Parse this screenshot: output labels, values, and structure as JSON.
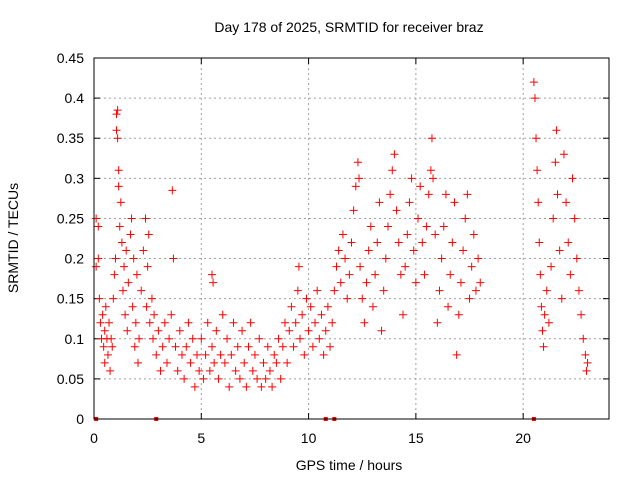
{
  "chart_data": {
    "type": "scatter",
    "title": "Day 178 of 2025, SRMTID for receiver braz",
    "xlabel": "GPS time / hours",
    "ylabel": "SRMTID / TECUs",
    "xlim": [
      0,
      24
    ],
    "ylim": [
      0,
      0.45
    ],
    "x_ticks": [
      0,
      5,
      10,
      15,
      20
    ],
    "x_tick_labels": [
      "0",
      "5",
      "10",
      "15",
      "20"
    ],
    "y_ticks": [
      0,
      0.05,
      0.1,
      0.15,
      0.2,
      0.25,
      0.3,
      0.35,
      0.4,
      0.45
    ],
    "y_tick_labels": [
      "0",
      "0.05",
      "0.1",
      "0.15",
      "0.2",
      "0.25",
      "0.3",
      "0.35",
      "0.4",
      "0.45"
    ],
    "grid": true,
    "marker": "+",
    "series": [
      {
        "name": "SRMTID",
        "color": "#ff0000",
        "points": [
          [
            0.1,
            0.25
          ],
          [
            0.1,
            0.19
          ],
          [
            0.2,
            0.24
          ],
          [
            0.2,
            0.2
          ],
          [
            0.25,
            0.15
          ],
          [
            0.3,
            0.12
          ],
          [
            0.35,
            0.1
          ],
          [
            0.4,
            0.13
          ],
          [
            0.45,
            0.09
          ],
          [
            0.5,
            0.11
          ],
          [
            0.5,
            0.07
          ],
          [
            0.55,
            0.14
          ],
          [
            0.6,
            0.1
          ],
          [
            0.65,
            0.08
          ],
          [
            0.7,
            0.12
          ],
          [
            0.75,
            0.06
          ],
          [
            0.8,
            0.1
          ],
          [
            0.85,
            0.09
          ],
          [
            0.9,
            0.15
          ],
          [
            0.95,
            0.18
          ],
          [
            1.0,
            0.2
          ],
          [
            1.05,
            0.38
          ],
          [
            1.05,
            0.36
          ],
          [
            1.1,
            0.385
          ],
          [
            1.1,
            0.35
          ],
          [
            1.15,
            0.31
          ],
          [
            1.15,
            0.29
          ],
          [
            1.2,
            0.24
          ],
          [
            1.25,
            0.27
          ],
          [
            1.3,
            0.22
          ],
          [
            1.35,
            0.16
          ],
          [
            1.4,
            0.19
          ],
          [
            1.45,
            0.13
          ],
          [
            1.5,
            0.21
          ],
          [
            1.55,
            0.11
          ],
          [
            1.6,
            0.17
          ],
          [
            1.7,
            0.23
          ],
          [
            1.75,
            0.25
          ],
          [
            1.8,
            0.14
          ],
          [
            1.85,
            0.2
          ],
          [
            1.9,
            0.09
          ],
          [
            1.95,
            0.12
          ],
          [
            2.0,
            0.18
          ],
          [
            2.05,
            0.07
          ],
          [
            2.1,
            0.1
          ],
          [
            2.2,
            0.16
          ],
          [
            2.3,
            0.21
          ],
          [
            2.4,
            0.25
          ],
          [
            2.45,
            0.14
          ],
          [
            2.5,
            0.19
          ],
          [
            2.55,
            0.23
          ],
          [
            2.6,
            0.12
          ],
          [
            2.7,
            0.15
          ],
          [
            2.75,
            0.1
          ],
          [
            2.8,
            0.13
          ],
          [
            2.9,
            0.08
          ],
          [
            3.0,
            0.11
          ],
          [
            3.1,
            0.06
          ],
          [
            3.2,
            0.09
          ],
          [
            3.3,
            0.12
          ],
          [
            3.4,
            0.07
          ],
          [
            3.5,
            0.1
          ],
          [
            3.6,
            0.13
          ],
          [
            3.65,
            0.285
          ],
          [
            3.7,
            0.2
          ],
          [
            3.8,
            0.09
          ],
          [
            3.9,
            0.06
          ],
          [
            4.0,
            0.11
          ],
          [
            4.1,
            0.08
          ],
          [
            4.2,
            0.05
          ],
          [
            4.3,
            0.09
          ],
          [
            4.4,
            0.12
          ],
          [
            4.5,
            0.07
          ],
          [
            4.6,
            0.1
          ],
          [
            4.7,
            0.04
          ],
          [
            4.8,
            0.08
          ],
          [
            4.9,
            0.06
          ],
          [
            5.0,
            0.1
          ],
          [
            5.1,
            0.05
          ],
          [
            5.2,
            0.08
          ],
          [
            5.3,
            0.12
          ],
          [
            5.4,
            0.06
          ],
          [
            5.5,
            0.09
          ],
          [
            5.5,
            0.18
          ],
          [
            5.55,
            0.17
          ],
          [
            5.6,
            0.07
          ],
          [
            5.7,
            0.11
          ],
          [
            5.8,
            0.05
          ],
          [
            5.9,
            0.08
          ],
          [
            6.0,
            0.13
          ],
          [
            6.1,
            0.07
          ],
          [
            6.2,
            0.1
          ],
          [
            6.3,
            0.04
          ],
          [
            6.4,
            0.08
          ],
          [
            6.5,
            0.12
          ],
          [
            6.6,
            0.06
          ],
          [
            6.7,
            0.09
          ],
          [
            6.8,
            0.05
          ],
          [
            6.9,
            0.11
          ],
          [
            7.0,
            0.07
          ],
          [
            7.1,
            0.04
          ],
          [
            7.2,
            0.09
          ],
          [
            7.3,
            0.12
          ],
          [
            7.4,
            0.06
          ],
          [
            7.5,
            0.08
          ],
          [
            7.6,
            0.05
          ],
          [
            7.7,
            0.1
          ],
          [
            7.8,
            0.04
          ],
          [
            7.9,
            0.07
          ],
          [
            8.0,
            0.05
          ],
          [
            8.1,
            0.09
          ],
          [
            8.2,
            0.06
          ],
          [
            8.3,
            0.04
          ],
          [
            8.4,
            0.08
          ],
          [
            8.5,
            0.07
          ],
          [
            8.6,
            0.1
          ],
          [
            8.7,
            0.05
          ],
          [
            8.8,
            0.09
          ],
          [
            8.9,
            0.12
          ],
          [
            9.0,
            0.07
          ],
          [
            9.1,
            0.11
          ],
          [
            9.2,
            0.14
          ],
          [
            9.3,
            0.09
          ],
          [
            9.4,
            0.12
          ],
          [
            9.5,
            0.16
          ],
          [
            9.55,
            0.19
          ],
          [
            9.6,
            0.1
          ],
          [
            9.7,
            0.13
          ],
          [
            9.8,
            0.08
          ],
          [
            9.9,
            0.15
          ],
          [
            10.0,
            0.11
          ],
          [
            10.1,
            0.14
          ],
          [
            10.2,
            0.09
          ],
          [
            10.3,
            0.12
          ],
          [
            10.4,
            0.16
          ],
          [
            10.5,
            0.1
          ],
          [
            10.6,
            0.13
          ],
          [
            10.7,
            0.08
          ],
          [
            10.8,
            0.11
          ],
          [
            10.9,
            0.14
          ],
          [
            11.0,
            0.09
          ],
          [
            11.1,
            0.12
          ],
          [
            11.2,
            0.16
          ],
          [
            11.3,
            0.19
          ],
          [
            11.4,
            0.21
          ],
          [
            11.5,
            0.17
          ],
          [
            11.6,
            0.23
          ],
          [
            11.7,
            0.2
          ],
          [
            11.8,
            0.15
          ],
          [
            11.9,
            0.18
          ],
          [
            12.0,
            0.22
          ],
          [
            12.1,
            0.26
          ],
          [
            12.2,
            0.29
          ],
          [
            12.3,
            0.32
          ],
          [
            12.35,
            0.3
          ],
          [
            12.4,
            0.19
          ],
          [
            12.5,
            0.15
          ],
          [
            12.6,
            0.12
          ],
          [
            12.7,
            0.17
          ],
          [
            12.8,
            0.21
          ],
          [
            12.9,
            0.24
          ],
          [
            13.0,
            0.14
          ],
          [
            13.1,
            0.18
          ],
          [
            13.2,
            0.22
          ],
          [
            13.3,
            0.27
          ],
          [
            13.4,
            0.11
          ],
          [
            13.5,
            0.16
          ],
          [
            13.6,
            0.2
          ],
          [
            13.7,
            0.24
          ],
          [
            13.8,
            0.28
          ],
          [
            13.9,
            0.31
          ],
          [
            14.0,
            0.33
          ],
          [
            14.1,
            0.26
          ],
          [
            14.2,
            0.22
          ],
          [
            14.3,
            0.18
          ],
          [
            14.4,
            0.13
          ],
          [
            14.5,
            0.19
          ],
          [
            14.6,
            0.23
          ],
          [
            14.7,
            0.27
          ],
          [
            14.8,
            0.3
          ],
          [
            14.9,
            0.21
          ],
          [
            15.0,
            0.17
          ],
          [
            15.1,
            0.25
          ],
          [
            15.2,
            0.29
          ],
          [
            15.3,
            0.22
          ],
          [
            15.4,
            0.18
          ],
          [
            15.5,
            0.24
          ],
          [
            15.6,
            0.28
          ],
          [
            15.7,
            0.31
          ],
          [
            15.75,
            0.35
          ],
          [
            15.8,
            0.3
          ],
          [
            15.9,
            0.23
          ],
          [
            16.0,
            0.12
          ],
          [
            16.1,
            0.16
          ],
          [
            16.2,
            0.2
          ],
          [
            16.3,
            0.24
          ],
          [
            16.4,
            0.28
          ],
          [
            16.5,
            0.14
          ],
          [
            16.6,
            0.18
          ],
          [
            16.7,
            0.22
          ],
          [
            16.8,
            0.27
          ],
          [
            16.9,
            0.08
          ],
          [
            17.0,
            0.13
          ],
          [
            17.1,
            0.17
          ],
          [
            17.2,
            0.21
          ],
          [
            17.3,
            0.25
          ],
          [
            17.4,
            0.28
          ],
          [
            17.5,
            0.15
          ],
          [
            17.6,
            0.19
          ],
          [
            17.7,
            0.23
          ],
          [
            17.8,
            0.16
          ],
          [
            17.9,
            0.2
          ],
          [
            18.0,
            0.17
          ],
          [
            20.5,
            0.42
          ],
          [
            20.55,
            0.4
          ],
          [
            20.6,
            0.35
          ],
          [
            20.65,
            0.31
          ],
          [
            20.7,
            0.27
          ],
          [
            20.75,
            0.22
          ],
          [
            20.8,
            0.18
          ],
          [
            20.85,
            0.14
          ],
          [
            20.9,
            0.11
          ],
          [
            20.95,
            0.09
          ],
          [
            21.0,
            0.13
          ],
          [
            21.1,
            0.16
          ],
          [
            21.2,
            0.12
          ],
          [
            21.3,
            0.19
          ],
          [
            21.4,
            0.25
          ],
          [
            21.5,
            0.32
          ],
          [
            21.55,
            0.36
          ],
          [
            21.6,
            0.28
          ],
          [
            21.7,
            0.21
          ],
          [
            21.8,
            0.15
          ],
          [
            21.9,
            0.33
          ],
          [
            22.0,
            0.27
          ],
          [
            22.1,
            0.22
          ],
          [
            22.2,
            0.18
          ],
          [
            22.3,
            0.3
          ],
          [
            22.4,
            0.25
          ],
          [
            22.5,
            0.2
          ],
          [
            22.6,
            0.16
          ],
          [
            22.7,
            0.13
          ],
          [
            22.8,
            0.1
          ],
          [
            22.9,
            0.08
          ],
          [
            22.95,
            0.06
          ],
          [
            23.0,
            0.07
          ]
        ]
      }
    ],
    "zero_markers_x": [
      0.1,
      2.9,
      10.8,
      11.2,
      20.5
    ]
  }
}
